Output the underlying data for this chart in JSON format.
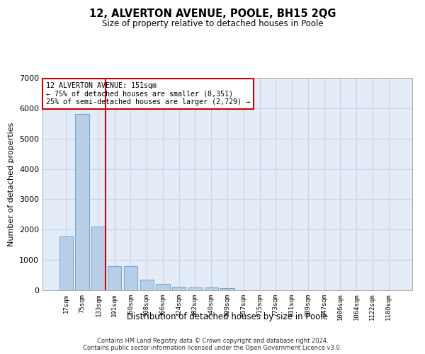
{
  "title": "12, ALVERTON AVENUE, POOLE, BH15 2QG",
  "subtitle": "Size of property relative to detached houses in Poole",
  "xlabel": "Distribution of detached houses by size in Poole",
  "ylabel": "Number of detached properties",
  "footnote1": "Contains HM Land Registry data © Crown copyright and database right 2024.",
  "footnote2": "Contains public sector information licensed under the Open Government Licence v3.0.",
  "categories": [
    "17sqm",
    "75sqm",
    "133sqm",
    "191sqm",
    "250sqm",
    "308sqm",
    "366sqm",
    "424sqm",
    "482sqm",
    "540sqm",
    "599sqm",
    "657sqm",
    "715sqm",
    "773sqm",
    "831sqm",
    "889sqm",
    "947sqm",
    "1006sqm",
    "1064sqm",
    "1122sqm",
    "1180sqm"
  ],
  "values": [
    1780,
    5800,
    2090,
    800,
    790,
    340,
    210,
    115,
    100,
    90,
    60,
    0,
    0,
    0,
    0,
    0,
    0,
    0,
    0,
    0,
    0
  ],
  "bar_color": "#b8cfe8",
  "bar_edge_color": "#6699cc",
  "annotation_text": "12 ALVERTON AVENUE: 151sqm\n← 75% of detached houses are smaller (8,351)\n25% of semi-detached houses are larger (2,729) →",
  "vline_position": 2.43,
  "vline_color": "#cc0000",
  "annotation_box_color": "#cc0000",
  "ylim": [
    0,
    7000
  ],
  "yticks": [
    0,
    1000,
    2000,
    3000,
    4000,
    5000,
    6000,
    7000
  ],
  "background_color": "#ffffff",
  "grid_color": "#c8d4e8",
  "ax_bg_color": "#e4ecf8"
}
